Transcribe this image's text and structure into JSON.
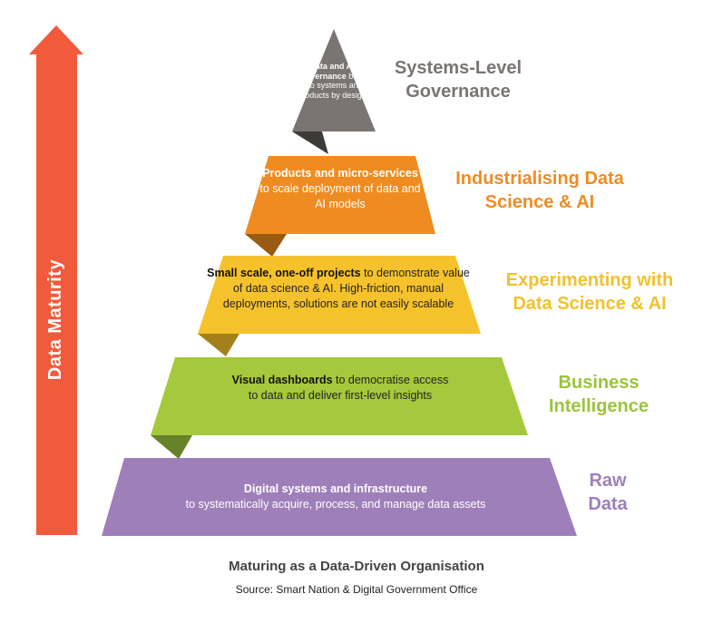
{
  "axis": {
    "label": "Data Maturity"
  },
  "tiers": [
    {
      "bold": "Data and AI governance",
      "rest": " built into systems and products by design",
      "side_line1": "Systems-Level",
      "side_line2": "Governance"
    },
    {
      "bold": "Products and micro-services",
      "rest": " to scale deployment of data and AI models",
      "side_line1": "Industrialising Data",
      "side_line2": "Science & AI"
    },
    {
      "bold": "Small scale, one-off projects",
      "rest": " to demonstrate value of data science & AI. High-friction, manual deployments, solutions are not easily scalable",
      "side_line1": "Experimenting with",
      "side_line2": "Data Science & AI"
    },
    {
      "bold": "Visual dashboards",
      "rest": " to democratise access to data and deliver first-level insights",
      "side_line1": "Business",
      "side_line2": "Intelligence"
    },
    {
      "bold": "Digital systems and infrastructure",
      "rest": " to systematically acquire, process, and manage data assets",
      "side_line1": "Raw",
      "side_line2": "Data"
    }
  ],
  "caption": {
    "title": "Maturing as a Data-Driven Organisation",
    "source": "Source: Smart Nation & Digital Government Office"
  },
  "colors": {
    "arrow": "#f15a3b",
    "tier0": "#7a7472",
    "tier0_dark": "#3e3a38",
    "tier1": "#ef8c21",
    "tier1_dark": "#9a5a12",
    "tier2": "#f6c22c",
    "tier2_dark": "#a3801b",
    "tier3": "#a5c93c",
    "tier3_dark": "#66822a",
    "tier4": "#9e7fba"
  }
}
